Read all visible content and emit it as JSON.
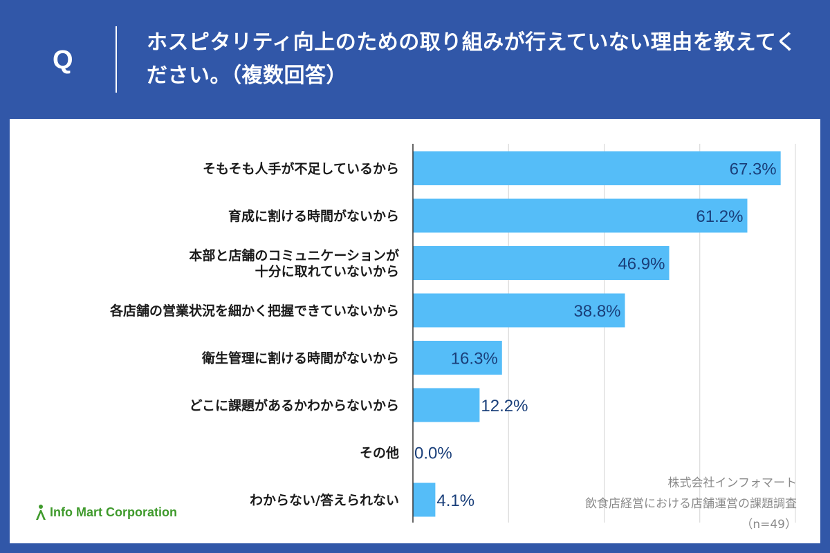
{
  "header": {
    "q_mark": "Q",
    "question": "ホスピタリティ向上のための取り組みが行えていない理由を教えてください。（複数回答）"
  },
  "chart_data": {
    "type": "bar",
    "orientation": "horizontal",
    "categories": [
      [
        "そもそも人手が不足しているから"
      ],
      [
        "育成に割ける時間がないから"
      ],
      [
        "本部と店舗のコミュニケーションが",
        "十分に取れていないから"
      ],
      [
        "各店舗の営業状況を細かく把握できていないから"
      ],
      [
        "衛生管理に割ける時間がないから"
      ],
      [
        "どこに課題があるかわからないから"
      ],
      [
        "その他"
      ],
      [
        "わからない/答えられない"
      ]
    ],
    "values": [
      67.3,
      61.2,
      46.9,
      38.8,
      16.3,
      12.2,
      0.0,
      4.1
    ],
    "value_labels": [
      "67.3%",
      "61.2%",
      "46.9%",
      "38.8%",
      "16.3%",
      "12.2%",
      "0.0%",
      "4.1%"
    ],
    "xlim": [
      0,
      70
    ],
    "grid_step": 17.5,
    "grid": true,
    "bar_color": "#55bdf8",
    "label_color": "#1a3f7a"
  },
  "source": {
    "company": "株式会社インフォマート",
    "survey": "飲食店経営における店舗運営の課題調査",
    "sample": "（n=49）"
  },
  "logo": {
    "text": "Info Mart Corporation",
    "color": "#3f9a2c"
  }
}
